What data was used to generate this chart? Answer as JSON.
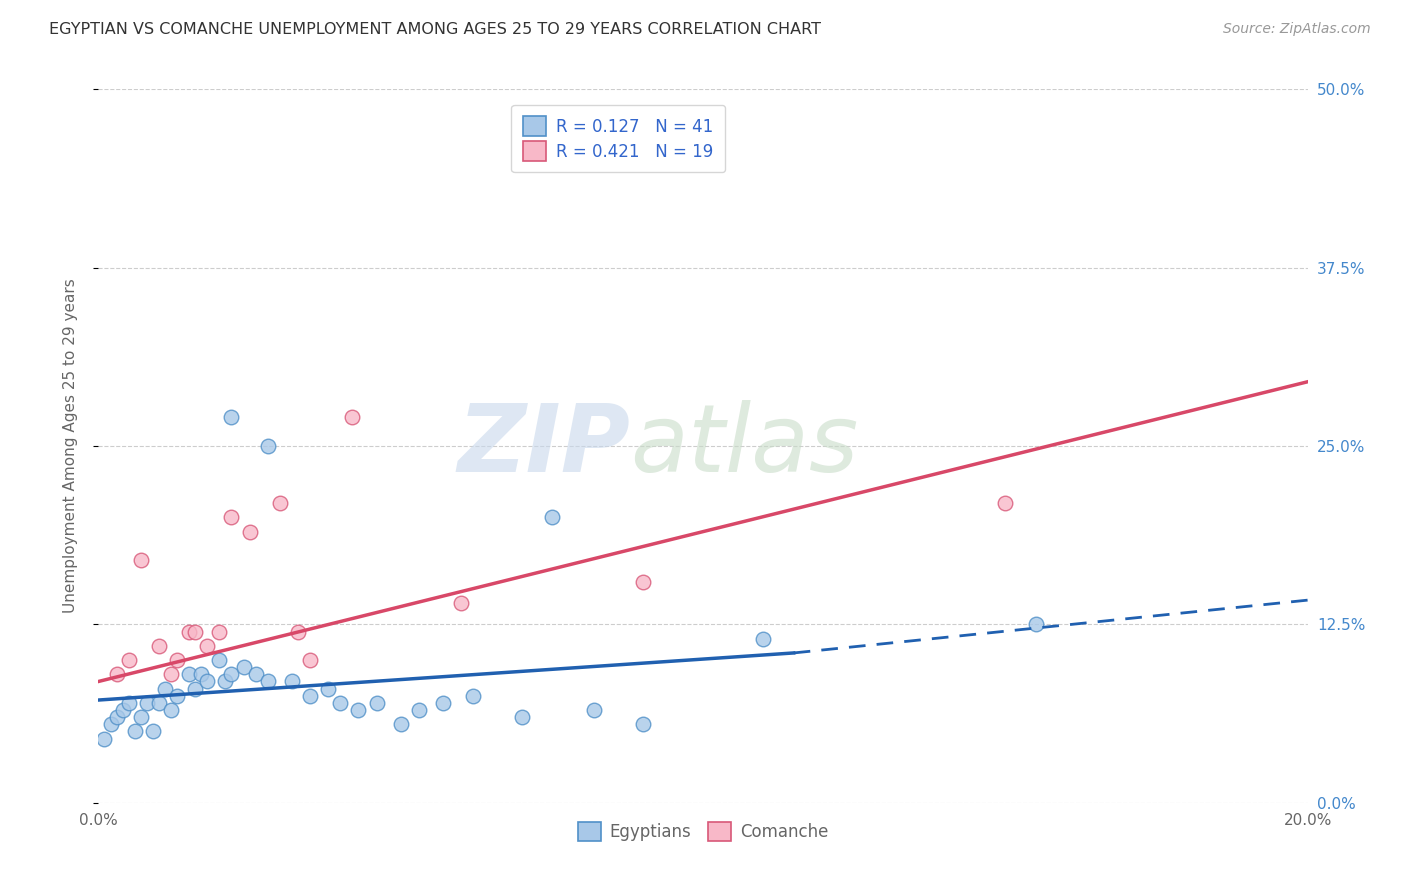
{
  "title": "EGYPTIAN VS COMANCHE UNEMPLOYMENT AMONG AGES 25 TO 29 YEARS CORRELATION CHART",
  "source": "Source: ZipAtlas.com",
  "ylabel": "Unemployment Among Ages 25 to 29 years",
  "xlim": [
    0.0,
    0.2
  ],
  "ylim": [
    0.0,
    0.5
  ],
  "xticks": [
    0.0,
    0.05,
    0.1,
    0.15,
    0.2
  ],
  "yticks_right": [
    0.0,
    0.125,
    0.25,
    0.375,
    0.5
  ],
  "ytick_labels_right": [
    "0.0%",
    "12.5%",
    "25.0%",
    "37.5%",
    "50.0%"
  ],
  "xtick_labels": [
    "0.0%",
    "",
    "",
    "",
    "20.0%"
  ],
  "egyptian_scatter": [
    [
      0.001,
      0.045
    ],
    [
      0.002,
      0.055
    ],
    [
      0.003,
      0.06
    ],
    [
      0.004,
      0.065
    ],
    [
      0.005,
      0.07
    ],
    [
      0.006,
      0.05
    ],
    [
      0.007,
      0.06
    ],
    [
      0.008,
      0.07
    ],
    [
      0.009,
      0.05
    ],
    [
      0.01,
      0.07
    ],
    [
      0.011,
      0.08
    ],
    [
      0.012,
      0.065
    ],
    [
      0.013,
      0.075
    ],
    [
      0.015,
      0.09
    ],
    [
      0.016,
      0.08
    ],
    [
      0.017,
      0.09
    ],
    [
      0.018,
      0.085
    ],
    [
      0.02,
      0.1
    ],
    [
      0.021,
      0.085
    ],
    [
      0.022,
      0.09
    ],
    [
      0.024,
      0.095
    ],
    [
      0.026,
      0.09
    ],
    [
      0.028,
      0.085
    ],
    [
      0.022,
      0.27
    ],
    [
      0.028,
      0.25
    ],
    [
      0.032,
      0.085
    ],
    [
      0.035,
      0.075
    ],
    [
      0.038,
      0.08
    ],
    [
      0.04,
      0.07
    ],
    [
      0.043,
      0.065
    ],
    [
      0.046,
      0.07
    ],
    [
      0.05,
      0.055
    ],
    [
      0.053,
      0.065
    ],
    [
      0.057,
      0.07
    ],
    [
      0.062,
      0.075
    ],
    [
      0.07,
      0.06
    ],
    [
      0.075,
      0.2
    ],
    [
      0.082,
      0.065
    ],
    [
      0.09,
      0.055
    ],
    [
      0.11,
      0.115
    ],
    [
      0.155,
      0.125
    ]
  ],
  "comanche_scatter": [
    [
      0.003,
      0.09
    ],
    [
      0.005,
      0.1
    ],
    [
      0.007,
      0.17
    ],
    [
      0.01,
      0.11
    ],
    [
      0.012,
      0.09
    ],
    [
      0.013,
      0.1
    ],
    [
      0.015,
      0.12
    ],
    [
      0.016,
      0.12
    ],
    [
      0.018,
      0.11
    ],
    [
      0.02,
      0.12
    ],
    [
      0.022,
      0.2
    ],
    [
      0.025,
      0.19
    ],
    [
      0.03,
      0.21
    ],
    [
      0.033,
      0.12
    ],
    [
      0.035,
      0.1
    ],
    [
      0.042,
      0.27
    ],
    [
      0.06,
      0.14
    ],
    [
      0.09,
      0.155
    ],
    [
      0.15,
      0.21
    ]
  ],
  "egyptian_line_solid": [
    [
      0.0,
      0.072
    ],
    [
      0.115,
      0.105
    ]
  ],
  "egyptian_line_dash": [
    [
      0.115,
      0.105
    ],
    [
      0.2,
      0.142
    ]
  ],
  "comanche_line": [
    [
      0.0,
      0.085
    ],
    [
      0.2,
      0.295
    ]
  ],
  "watermark_zip": "ZIP",
  "watermark_atlas": "atlas",
  "background_color": "#ffffff",
  "scatter_size": 110,
  "egyptian_color": "#a8c8e8",
  "egyptian_edge_color": "#5090c8",
  "comanche_color": "#f8b8c8",
  "comanche_edge_color": "#d85878",
  "line_egyptian_color": "#2060b0",
  "line_comanche_color": "#d84868",
  "grid_color": "#c8c8c8",
  "title_color": "#333333",
  "axis_label_color": "#666666",
  "right_tick_color": "#4488cc",
  "legend_text_color": "#3366cc",
  "legend_eg_patch_color": "#a8c8e8",
  "legend_eg_patch_edge": "#5090c8",
  "legend_co_patch_color": "#f8b8c8",
  "legend_co_patch_edge": "#d85878"
}
